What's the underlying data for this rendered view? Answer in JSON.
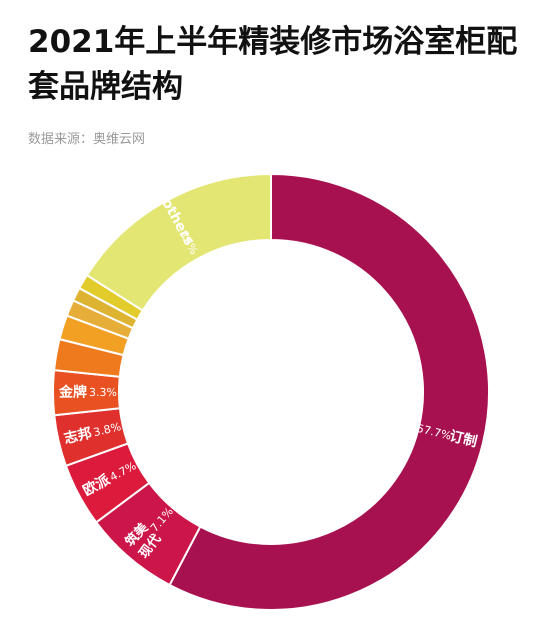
{
  "title": "2021年上半年精装修市场浴室柜配套品牌结构",
  "source": "数据来源：奥维云网",
  "chart_data": {
    "type": "pie",
    "title": "2021年上半年精装修市场浴室柜配套品牌结构",
    "donut": true,
    "slices": [
      {
        "label": "订制",
        "value": 57.7,
        "value_label": "57.7%",
        "color": "#a8114f"
      },
      {
        "label": "现代筑美",
        "value": 7.1,
        "value_label": "7.1%",
        "color": "#cc1549"
      },
      {
        "label": "欧派",
        "value": 4.7,
        "value_label": "4.7%",
        "color": "#dc1b3c"
      },
      {
        "label": "志邦",
        "value": 3.8,
        "value_label": "3.8%",
        "color": "#e0302e"
      },
      {
        "label": "金牌",
        "value": 3.3,
        "value_label": "3.3%",
        "color": "#e95022"
      },
      {
        "label": "",
        "value": 2.3,
        "value_label": "",
        "color": "#ef7a1e"
      },
      {
        "label": "",
        "value": 1.8,
        "value_label": "",
        "color": "#f2a024"
      },
      {
        "label": "",
        "value": 1.2,
        "value_label": "",
        "color": "#e7ad39"
      },
      {
        "label": "",
        "value": 1.0,
        "value_label": "",
        "color": "#ddb331"
      },
      {
        "label": "",
        "value": 1.1,
        "value_label": "",
        "color": "#e2cc2c"
      },
      {
        "label": "others",
        "value": 16,
        "value_label": "16%",
        "color": "#e4e673"
      }
    ]
  }
}
